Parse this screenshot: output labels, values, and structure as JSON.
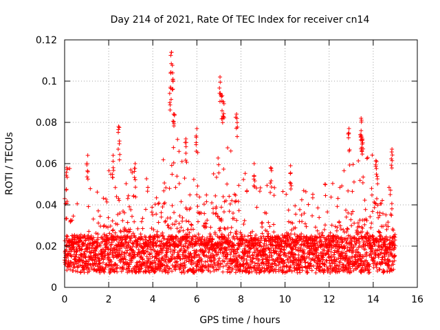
{
  "chart_data": {
    "type": "scatter",
    "title": "Day 214 of 2021, Rate Of TEC Index for receiver cn14",
    "xlabel": "GPS time / hours",
    "ylabel": "ROTI / TECUs",
    "xlim": [
      0,
      16
    ],
    "ylim": [
      0,
      0.12
    ],
    "xticks": [
      0,
      2,
      4,
      6,
      8,
      10,
      12,
      14,
      16
    ],
    "xtick_labels": [
      "0",
      "2",
      "4",
      "6",
      "8",
      "10",
      "12",
      "14",
      "16"
    ],
    "yticks": [
      0,
      0.02,
      0.04,
      0.06,
      0.08,
      0.1,
      0.12
    ],
    "ytick_labels": [
      "0",
      "0.02",
      "0.04",
      "0.06",
      "0.08",
      "0.1",
      "0.12"
    ],
    "grid": true,
    "marker": "+",
    "marker_color": "#ff0000",
    "series": [
      {
        "name": "ROTI",
        "x_range": [
          0,
          15
        ],
        "typical_range": [
          0.007,
          0.025
        ],
        "peaks": [
          {
            "x": 0.1,
            "y": 0.058
          },
          {
            "x": 1.05,
            "y": 0.064
          },
          {
            "x": 2.2,
            "y": 0.064
          },
          {
            "x": 2.45,
            "y": 0.078
          },
          {
            "x": 3.2,
            "y": 0.06
          },
          {
            "x": 4.85,
            "y": 0.114
          },
          {
            "x": 4.9,
            "y": 0.104
          },
          {
            "x": 4.8,
            "y": 0.097
          },
          {
            "x": 4.95,
            "y": 0.084
          },
          {
            "x": 5.5,
            "y": 0.072
          },
          {
            "x": 6.0,
            "y": 0.077
          },
          {
            "x": 7.05,
            "y": 0.102
          },
          {
            "x": 7.15,
            "y": 0.093
          },
          {
            "x": 7.2,
            "y": 0.09
          },
          {
            "x": 7.8,
            "y": 0.084
          },
          {
            "x": 8.6,
            "y": 0.06
          },
          {
            "x": 9.35,
            "y": 0.058
          },
          {
            "x": 10.25,
            "y": 0.059
          },
          {
            "x": 12.9,
            "y": 0.077
          },
          {
            "x": 13.45,
            "y": 0.082
          },
          {
            "x": 13.45,
            "y": 0.076
          },
          {
            "x": 13.5,
            "y": 0.072
          },
          {
            "x": 14.15,
            "y": 0.061
          },
          {
            "x": 14.85,
            "y": 0.067
          }
        ]
      }
    ]
  }
}
